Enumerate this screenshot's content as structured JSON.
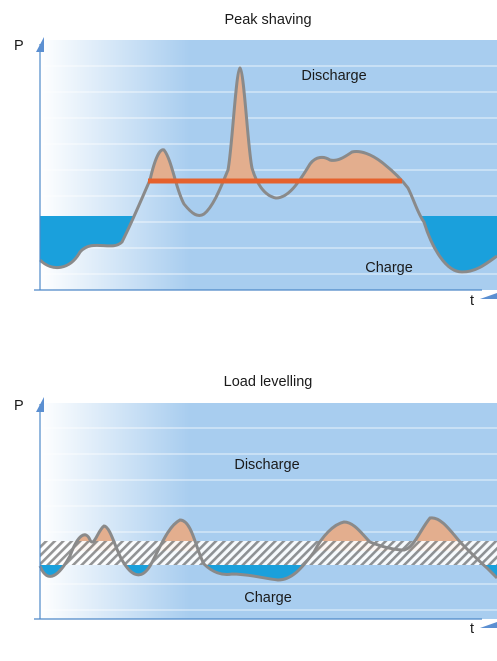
{
  "colors": {
    "background": "#ffffff",
    "chart_fill": "#a8cdef",
    "chart_fade": "#ffffff",
    "gridline": "#ffffff",
    "axis": "#4d88c8",
    "axis_arrow": "#5b8fd1",
    "curve": "#8a8a8a",
    "discharge_fill": "#e3ae8e",
    "charge_fill": "#1aa0dc",
    "threshold_line": "#e5612d",
    "band_hatch": "#8a8a8a"
  },
  "diagrams": [
    {
      "title": "Peak shaving",
      "y_axis_label": "P",
      "x_axis_label": "t",
      "discharge_label": "Discharge",
      "charge_label": "Charge"
    },
    {
      "title": "Load levelling",
      "y_axis_label": "P",
      "x_axis_label": "t",
      "discharge_label": "Discharge",
      "charge_label": "Charge"
    }
  ]
}
